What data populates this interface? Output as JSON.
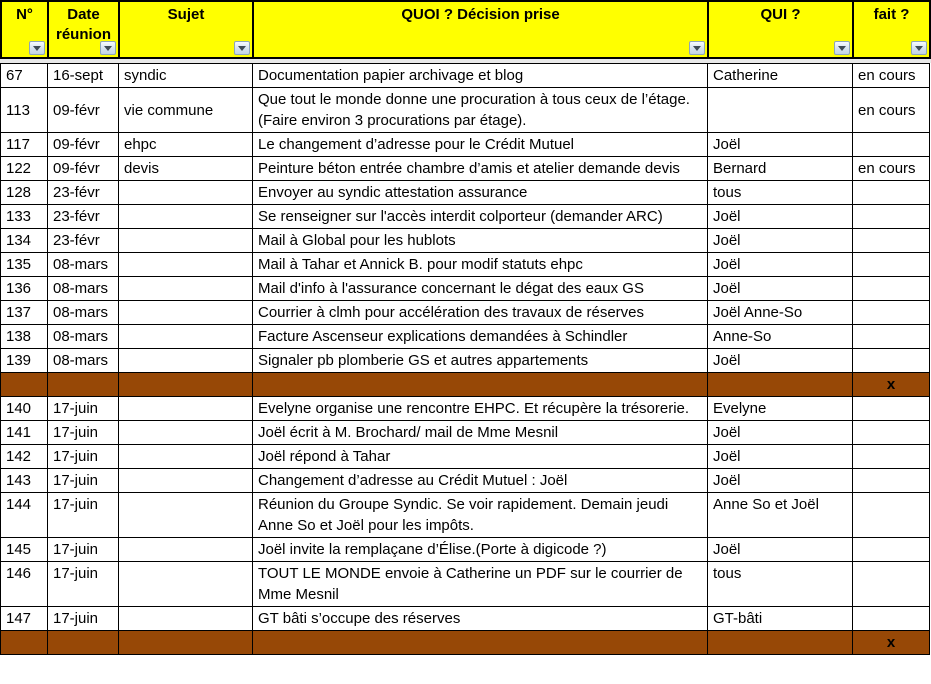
{
  "header": {
    "columns": [
      {
        "label": "N°"
      },
      {
        "label": "Date réunion"
      },
      {
        "label": "Sujet"
      },
      {
        "label": "QUOI ? Décision prise"
      },
      {
        "label": "QUI ?"
      },
      {
        "label": "fait ?"
      }
    ],
    "filter_icon": "filter-dropdown-triangle"
  },
  "colors": {
    "header_bg": "#FFFF00",
    "separator_bg": "#974806",
    "grid_line": "#000000",
    "filter_button_bg": "#D5E2EE"
  },
  "rows": [
    {
      "type": "data",
      "num": "67",
      "date": "16-sept",
      "sujet": "syndic",
      "quoi": "Documentation papier archivage et blog",
      "qui": "Catherine",
      "fait": "en cours"
    },
    {
      "type": "data",
      "num": "113",
      "date": "09-févr",
      "sujet": "vie commune",
      "quoi": "Que tout le monde donne une procuration à tous ceux de l’étage. (Faire environ 3 procurations par étage).",
      "qui": "",
      "fait": "en cours"
    },
    {
      "type": "data",
      "num": "117",
      "date": "09-févr",
      "sujet": "ehpc",
      "quoi": "Le changement d’adresse pour le Crédit Mutuel",
      "qui": "Joël",
      "fait": ""
    },
    {
      "type": "data",
      "num": "122",
      "date": "09-févr",
      "sujet": "devis",
      "quoi": "Peinture béton entrée chambre d’amis et atelier demande devis",
      "qui": "Bernard",
      "fait": "en cours"
    },
    {
      "type": "data",
      "num": "128",
      "date": "23-févr",
      "sujet": "",
      "quoi": "Envoyer au syndic attestation assurance",
      "qui": "tous",
      "fait": ""
    },
    {
      "type": "data",
      "num": "133",
      "date": "23-févr",
      "sujet": "",
      "quoi": "Se renseigner sur l'accès interdit colporteur (demander ARC)",
      "qui": "Joël",
      "fait": ""
    },
    {
      "type": "data",
      "num": "134",
      "date": "23-févr",
      "sujet": "",
      "quoi": "Mail à Global pour les hublots",
      "qui": "Joël",
      "fait": ""
    },
    {
      "type": "data",
      "num": "135",
      "date": "08-mars",
      "sujet": "",
      "quoi": "Mail à Tahar et Annick B. pour modif statuts ehpc",
      "qui": "Joël",
      "fait": ""
    },
    {
      "type": "data",
      "num": "136",
      "date": "08-mars",
      "sujet": "",
      "quoi": "Mail d'info à l'assurance concernant le  dégat des eaux GS",
      "qui": "Joël",
      "fait": ""
    },
    {
      "type": "data",
      "num": "137",
      "date": "08-mars",
      "sujet": "",
      "quoi": "Courrier à clmh pour accélération des travaux de réserves",
      "qui": "Joël Anne-So",
      "fait": ""
    },
    {
      "type": "data",
      "num": "138",
      "date": "08-mars",
      "sujet": "",
      "quoi": "Facture Ascenseur explications demandées à Schindler",
      "qui": "Anne-So",
      "fait": ""
    },
    {
      "type": "data",
      "num": "139",
      "date": "08-mars",
      "sujet": "",
      "quoi": "Signaler pb plomberie GS et autres appartements",
      "qui": "Joël",
      "fait": ""
    },
    {
      "type": "separator",
      "num": "",
      "date": "",
      "sujet": "",
      "quoi": "",
      "qui": "",
      "fait": "x"
    },
    {
      "type": "data",
      "num": "140",
      "date": "17-juin",
      "sujet": "",
      "quoi": "Evelyne  organise une rencontre EHPC. Et récupère la trésorerie.",
      "qui": "Evelyne",
      "fait": ""
    },
    {
      "type": "data",
      "num": "141",
      "date": "17-juin",
      "sujet": "",
      "quoi": " Joël écrit à M. Brochard/ mail de Mme Mesnil",
      "qui": "Joël",
      "fait": ""
    },
    {
      "type": "data",
      "num": "142",
      "date": "17-juin",
      "sujet": "",
      "quoi": "Joël répond à Tahar",
      "qui": "Joël",
      "fait": ""
    },
    {
      "type": "data",
      "num": "143",
      "date": "17-juin",
      "sujet": "",
      "quoi": "Changement d’adresse au Crédit Mutuel : Joël",
      "qui": "Joël",
      "fait": ""
    },
    {
      "type": "data",
      "num": "144",
      "date": "17-juin",
      "sujet": "",
      "quoi": "Réunion du Groupe Syndic. Se voir rapidement. Demain jeudi Anne So et Joël pour les impôts.",
      "qui": "Anne So et Joël",
      "fait": ""
    },
    {
      "type": "data",
      "num": "145",
      "date": "17-juin",
      "sujet": "",
      "quoi": "Joël invite la remplaçane d’Élise.(Porte à digicode ?)",
      "qui": "Joël",
      "fait": ""
    },
    {
      "type": "data",
      "num": "146",
      "date": "17-juin",
      "sujet": "",
      "quoi": "TOUT LE MONDE envoie à Catherine un  PDF sur le courrier de Mme Mesnil",
      "qui": "tous",
      "fait": ""
    },
    {
      "type": "data",
      "num": "147",
      "date": "17-juin",
      "sujet": "",
      "quoi": "GT bâti  s’occupe des réserves",
      "qui": "GT-bâti",
      "fait": ""
    },
    {
      "type": "separator",
      "num": "",
      "date": "",
      "sujet": "",
      "quoi": "",
      "qui": "",
      "fait": "x"
    }
  ]
}
